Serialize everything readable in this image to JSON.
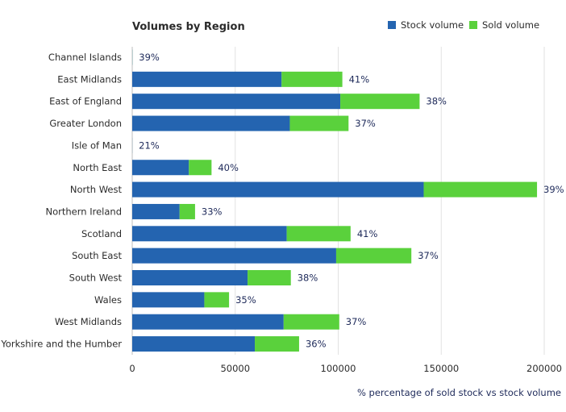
{
  "chart_data": {
    "type": "bar",
    "orientation": "horizontal",
    "stacked": true,
    "title": "Volumes by Region",
    "footnote": "% percentage of sold stock vs stock volume",
    "xlim": [
      0,
      210000
    ],
    "xticks": [
      0,
      50000,
      100000,
      150000,
      200000
    ],
    "grid": true,
    "legend_position": "top-right",
    "categories": [
      "Channel Islands",
      "East Midlands",
      "East of England",
      "Greater London",
      "Isle of Man",
      "North East",
      "North West",
      "Northern Ireland",
      "Scotland",
      "South East",
      "South West",
      "Wales",
      "West Midlands",
      "Yorkshire and the Humber"
    ],
    "series": [
      {
        "name": "Stock volume",
        "color": "#2464b0",
        "values": [
          80,
          72500,
          101000,
          76500,
          40,
          27500,
          141500,
          23000,
          75000,
          99000,
          56000,
          35000,
          73500,
          59500
        ]
      },
      {
        "name": "Sold volume",
        "color": "#5ad13c",
        "values": [
          30,
          29500,
          38500,
          28500,
          10,
          11000,
          55000,
          7500,
          31000,
          36500,
          21000,
          12000,
          27000,
          21500
        ]
      }
    ],
    "bar_labels": [
      "39%",
      "41%",
      "38%",
      "37%",
      "21%",
      "40%",
      "39%",
      "33%",
      "41%",
      "37%",
      "38%",
      "35%",
      "37%",
      "36%"
    ]
  }
}
